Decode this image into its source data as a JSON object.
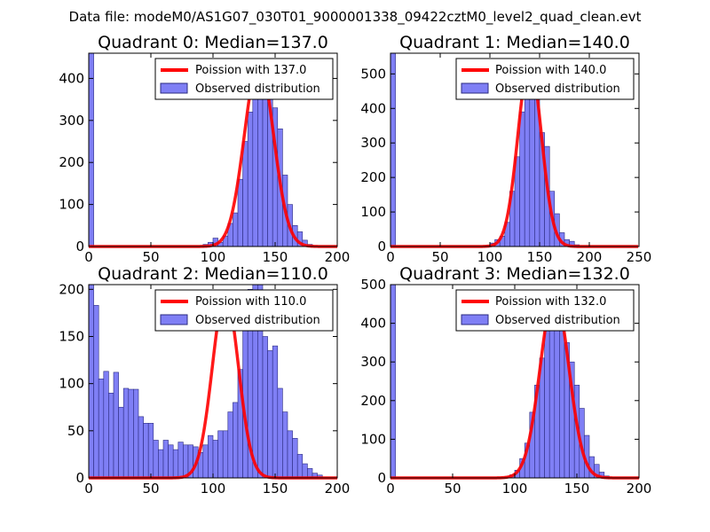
{
  "suptitle": "Data file: modeM0/AS1G07_030T01_9000001338_09422cztM0_level2_quad_clean.evt",
  "colors": {
    "bar_fill": "#7f7ff5",
    "bar_edge": "#2b2b80",
    "curve": "#ff0000"
  },
  "chart_data": [
    {
      "type": "bar",
      "title": "Quadrant 0: Median=137.0",
      "xlim": [
        0,
        200
      ],
      "ylim": [
        0,
        460
      ],
      "xticks": [
        0,
        50,
        100,
        150,
        200
      ],
      "yticks": [
        0,
        100,
        200,
        300,
        400
      ],
      "bin_width": 4,
      "bins": [
        [
          0,
          460
        ],
        [
          92,
          5
        ],
        [
          96,
          10
        ],
        [
          100,
          20
        ],
        [
          104,
          10
        ],
        [
          108,
          25
        ],
        [
          112,
          55
        ],
        [
          116,
          80
        ],
        [
          120,
          160
        ],
        [
          124,
          250
        ],
        [
          128,
          320
        ],
        [
          132,
          360
        ],
        [
          136,
          420
        ],
        [
          140,
          400
        ],
        [
          144,
          360
        ],
        [
          148,
          330
        ],
        [
          152,
          280
        ],
        [
          156,
          170
        ],
        [
          160,
          100
        ],
        [
          164,
          50
        ],
        [
          168,
          35
        ],
        [
          172,
          15
        ],
        [
          176,
          5
        ]
      ],
      "legend": [
        "Poission with 137.0",
        "Observed distribution"
      ],
      "poisson_mean": 137.0,
      "curve_peak": 440,
      "curve_sigma": 11.7
    },
    {
      "type": "bar",
      "title": "Quadrant 1: Median=140.0",
      "xlim": [
        0,
        250
      ],
      "ylim": [
        0,
        560
      ],
      "xticks": [
        0,
        50,
        100,
        150,
        200,
        250
      ],
      "yticks": [
        0,
        100,
        200,
        300,
        400,
        500
      ],
      "bin_width": 5,
      "bins": [
        [
          0,
          560
        ],
        [
          95,
          3
        ],
        [
          100,
          10
        ],
        [
          105,
          20
        ],
        [
          110,
          30
        ],
        [
          115,
          70
        ],
        [
          120,
          160
        ],
        [
          125,
          260
        ],
        [
          130,
          390
        ],
        [
          135,
          480
        ],
        [
          140,
          510
        ],
        [
          145,
          430
        ],
        [
          150,
          330
        ],
        [
          155,
          290
        ],
        [
          160,
          160
        ],
        [
          165,
          95
        ],
        [
          170,
          40
        ],
        [
          175,
          20
        ],
        [
          180,
          15
        ],
        [
          185,
          5
        ]
      ],
      "legend": [
        "Poission with 140.0",
        "Observed distribution"
      ],
      "poisson_mean": 140.0,
      "curve_peak": 535,
      "curve_sigma": 11.8
    },
    {
      "type": "bar",
      "title": "Quadrant 2: Median=110.0",
      "xlim": [
        0,
        200
      ],
      "ylim": [
        0,
        205
      ],
      "xticks": [
        0,
        50,
        100,
        150,
        200
      ],
      "yticks": [
        0,
        50,
        100,
        150,
        200
      ],
      "bin_width": 4,
      "bins": [
        [
          0,
          205
        ],
        [
          4,
          183
        ],
        [
          8,
          105
        ],
        [
          12,
          113
        ],
        [
          16,
          90
        ],
        [
          20,
          112
        ],
        [
          24,
          75
        ],
        [
          28,
          95
        ],
        [
          32,
          94
        ],
        [
          36,
          94
        ],
        [
          40,
          65
        ],
        [
          44,
          58
        ],
        [
          48,
          58
        ],
        [
          52,
          40
        ],
        [
          56,
          30
        ],
        [
          60,
          40
        ],
        [
          64,
          35
        ],
        [
          68,
          30
        ],
        [
          72,
          38
        ],
        [
          76,
          35
        ],
        [
          80,
          35
        ],
        [
          84,
          33
        ],
        [
          88,
          27
        ],
        [
          92,
          35
        ],
        [
          96,
          45
        ],
        [
          100,
          40
        ],
        [
          104,
          50
        ],
        [
          108,
          50
        ],
        [
          112,
          70
        ],
        [
          116,
          80
        ],
        [
          120,
          115
        ],
        [
          124,
          175
        ],
        [
          128,
          200
        ],
        [
          132,
          210
        ],
        [
          136,
          220
        ],
        [
          140,
          150
        ],
        [
          144,
          135
        ],
        [
          148,
          140
        ],
        [
          152,
          95
        ],
        [
          156,
          70
        ],
        [
          160,
          50
        ],
        [
          164,
          42
        ],
        [
          168,
          25
        ],
        [
          172,
          15
        ],
        [
          176,
          10
        ],
        [
          180,
          5
        ],
        [
          184,
          3
        ]
      ],
      "legend": [
        "Poission with 110.0",
        "Observed distribution"
      ],
      "poisson_mean": 110.0,
      "curve_peak": 195,
      "curve_sigma": 10.5
    },
    {
      "type": "bar",
      "title": "Quadrant 3: Median=132.0",
      "xlim": [
        0,
        200
      ],
      "ylim": [
        0,
        500
      ],
      "xticks": [
        0,
        50,
        100,
        150,
        200
      ],
      "yticks": [
        0,
        100,
        200,
        300,
        400,
        500
      ],
      "bin_width": 4,
      "bins": [
        [
          0,
          500
        ],
        [
          92,
          3
        ],
        [
          96,
          8
        ],
        [
          100,
          20
        ],
        [
          104,
          50
        ],
        [
          108,
          90
        ],
        [
          112,
          170
        ],
        [
          116,
          240
        ],
        [
          120,
          310
        ],
        [
          124,
          380
        ],
        [
          128,
          420
        ],
        [
          132,
          440
        ],
        [
          136,
          410
        ],
        [
          140,
          350
        ],
        [
          144,
          300
        ],
        [
          148,
          240
        ],
        [
          152,
          180
        ],
        [
          156,
          110
        ],
        [
          160,
          55
        ],
        [
          164,
          35
        ],
        [
          168,
          15
        ],
        [
          172,
          5
        ]
      ],
      "legend": [
        "Poission with 132.0",
        "Observed distribution"
      ],
      "poisson_mean": 132.0,
      "curve_peak": 475,
      "curve_sigma": 11.5
    }
  ]
}
